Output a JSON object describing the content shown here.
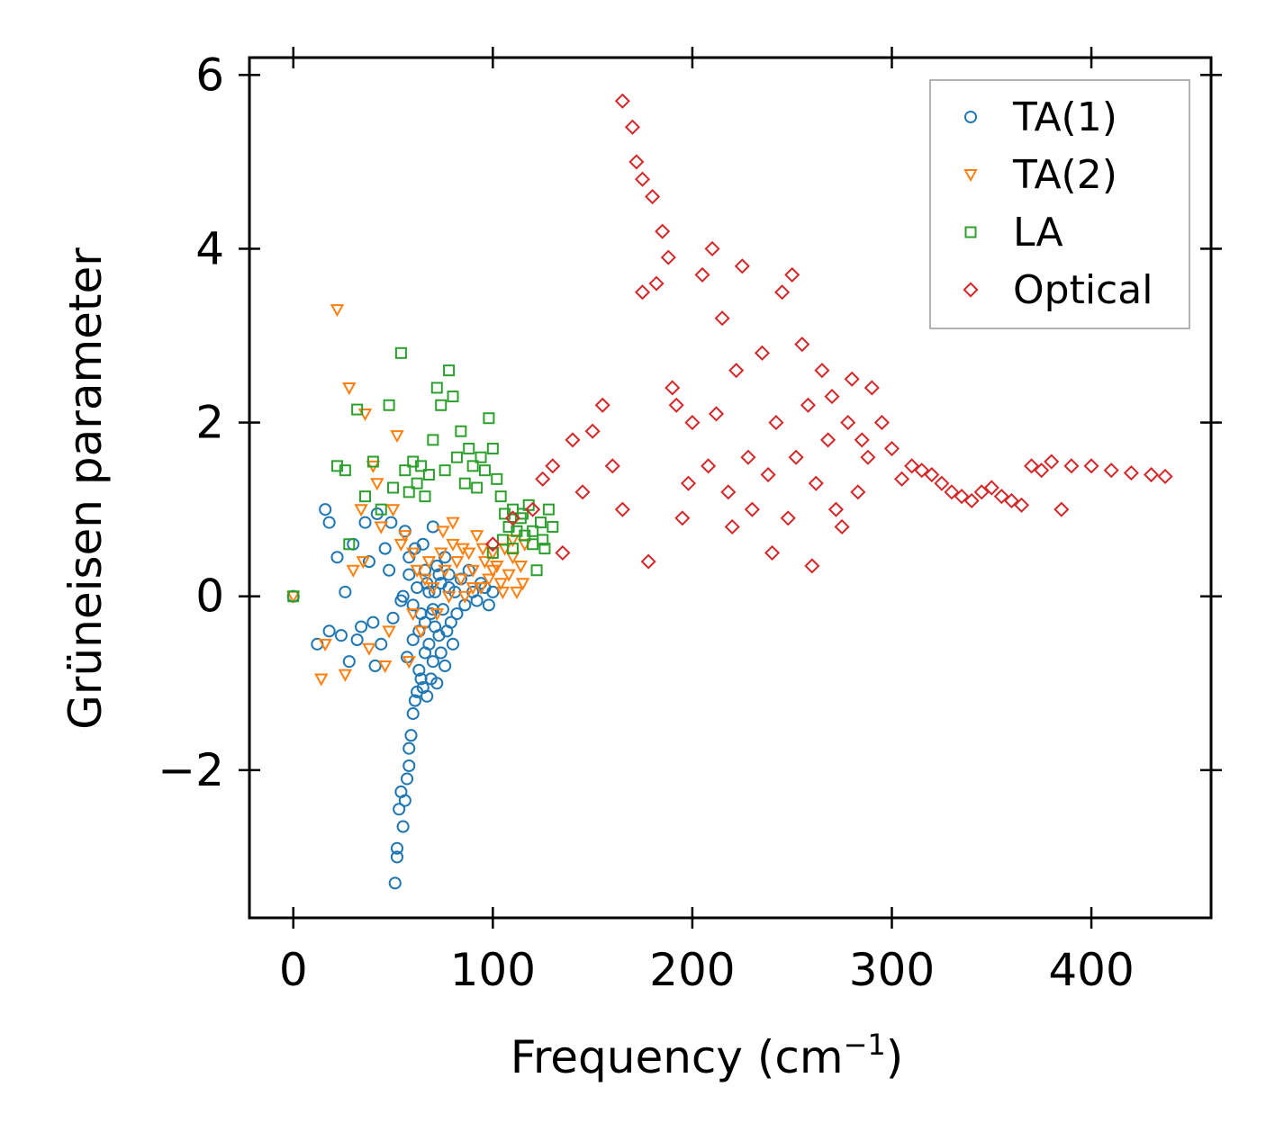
{
  "chart_data": {
    "type": "scatter",
    "title": "",
    "xlabel": "Frequency (cm",
    "xlabel_sup": "−1",
    "xlabel_close": ")",
    "ylabel": "Grüneisen parameter",
    "xlim": [
      -22,
      460
    ],
    "ylim": [
      -3.7,
      6.2
    ],
    "x_ticks": [
      0,
      100,
      200,
      300,
      400
    ],
    "x_tick_labels": [
      "0",
      "100",
      "200",
      "300",
      "400"
    ],
    "y_ticks": [
      -2,
      0,
      2,
      4,
      6
    ],
    "y_tick_labels": [
      "−2",
      "0",
      "2",
      "4",
      "6"
    ],
    "grid": false,
    "legend_position": "top-right",
    "series": [
      {
        "name": "TA(1)",
        "marker": "circle",
        "color": "#1f77b4",
        "points": [
          [
            0,
            0
          ],
          [
            12,
            -0.55
          ],
          [
            18,
            -0.4
          ],
          [
            16,
            1.0
          ],
          [
            18,
            0.85
          ],
          [
            22,
            0.45
          ],
          [
            24,
            -0.45
          ],
          [
            26,
            0.05
          ],
          [
            28,
            -0.75
          ],
          [
            30,
            0.6
          ],
          [
            32,
            -0.5
          ],
          [
            34,
            -0.35
          ],
          [
            36,
            0.85
          ],
          [
            38,
            0.4
          ],
          [
            40,
            -0.3
          ],
          [
            41,
            -0.8
          ],
          [
            42,
            0.95
          ],
          [
            44,
            -0.55
          ],
          [
            46,
            0.55
          ],
          [
            48,
            0.3
          ],
          [
            49,
            0.85
          ],
          [
            50,
            -0.25
          ],
          [
            51,
            -3.3
          ],
          [
            52,
            -3.0
          ],
          [
            52,
            -2.9
          ],
          [
            53,
            -2.45
          ],
          [
            54,
            -2.25
          ],
          [
            55,
            -2.65
          ],
          [
            56,
            -2.35
          ],
          [
            57,
            -2.1
          ],
          [
            58,
            -1.95
          ],
          [
            58,
            -1.75
          ],
          [
            59,
            -1.6
          ],
          [
            60,
            -1.35
          ],
          [
            61,
            -1.2
          ],
          [
            62,
            -1.1
          ],
          [
            63,
            -0.85
          ],
          [
            64,
            -0.95
          ],
          [
            65,
            -1.05
          ],
          [
            66,
            -0.65
          ],
          [
            67,
            -1.15
          ],
          [
            68,
            -0.55
          ],
          [
            69,
            -0.95
          ],
          [
            70,
            -0.75
          ],
          [
            71,
            -0.35
          ],
          [
            72,
            -1.0
          ],
          [
            73,
            -0.45
          ],
          [
            74,
            -0.65
          ],
          [
            75,
            -0.15
          ],
          [
            76,
            -0.8
          ],
          [
            77,
            -0.4
          ],
          [
            78,
            0.1
          ],
          [
            79,
            -0.3
          ],
          [
            80,
            -0.55
          ],
          [
            81,
            0.05
          ],
          [
            82,
            -0.2
          ],
          [
            84,
            0.2
          ],
          [
            86,
            -0.1
          ],
          [
            88,
            0.3
          ],
          [
            90,
            0.05
          ],
          [
            92,
            -0.05
          ],
          [
            94,
            0.15
          ],
          [
            96,
            0.1
          ],
          [
            98,
            -0.1
          ],
          [
            100,
            0.05
          ],
          [
            55,
            0.0
          ],
          [
            58,
            0.25
          ],
          [
            60,
            -0.1
          ],
          [
            62,
            0.1
          ],
          [
            64,
            -0.2
          ],
          [
            66,
            0.3
          ],
          [
            68,
            0.05
          ],
          [
            70,
            -0.15
          ],
          [
            72,
            0.35
          ],
          [
            74,
            0.15
          ],
          [
            76,
            0.45
          ],
          [
            78,
            0.25
          ],
          [
            60,
            -0.5
          ],
          [
            63,
            -0.4
          ],
          [
            66,
            -0.3
          ],
          [
            69,
            -0.2
          ],
          [
            65,
            0.6
          ],
          [
            70,
            0.8
          ],
          [
            58,
            0.45
          ],
          [
            56,
            0.75
          ],
          [
            54,
            -0.05
          ],
          [
            57,
            -0.7
          ],
          [
            61,
            0.55
          ],
          [
            67,
            0.15
          ],
          [
            71,
            0.05
          ],
          [
            73,
            0.25
          ]
        ]
      },
      {
        "name": "TA(2)",
        "marker": "triangle-down",
        "color": "#ff7f0e",
        "points": [
          [
            0,
            0
          ],
          [
            14,
            -0.95
          ],
          [
            16,
            -0.55
          ],
          [
            22,
            3.3
          ],
          [
            26,
            -0.9
          ],
          [
            28,
            2.4
          ],
          [
            30,
            0.3
          ],
          [
            34,
            1.0
          ],
          [
            36,
            2.1
          ],
          [
            38,
            -0.6
          ],
          [
            40,
            1.5
          ],
          [
            42,
            1.3
          ],
          [
            44,
            0.8
          ],
          [
            46,
            -0.8
          ],
          [
            48,
            -0.4
          ],
          [
            50,
            1.0
          ],
          [
            52,
            1.85
          ],
          [
            54,
            0.6
          ],
          [
            56,
            0.7
          ],
          [
            58,
            -0.75
          ],
          [
            60,
            0.5
          ],
          [
            62,
            0.3
          ],
          [
            64,
            -0.4
          ],
          [
            66,
            0.2
          ],
          [
            68,
            0.4
          ],
          [
            70,
            0.1
          ],
          [
            72,
            -0.2
          ],
          [
            74,
            0.5
          ],
          [
            76,
            0.3
          ],
          [
            78,
            0.0
          ],
          [
            80,
            0.6
          ],
          [
            82,
            0.4
          ],
          [
            84,
            0.2
          ],
          [
            86,
            0.0
          ],
          [
            88,
            0.5
          ],
          [
            90,
            0.3
          ],
          [
            92,
            0.7
          ],
          [
            94,
            0.1
          ],
          [
            96,
            0.4
          ],
          [
            98,
            0.2
          ],
          [
            100,
            0.5
          ],
          [
            102,
            0.35
          ],
          [
            104,
            0.15
          ],
          [
            106,
            0.55
          ],
          [
            108,
            0.25
          ],
          [
            110,
            0.45
          ],
          [
            112,
            0.05
          ],
          [
            114,
            0.35
          ],
          [
            116,
            0.6
          ],
          [
            75,
            0.75
          ],
          [
            80,
            0.85
          ],
          [
            85,
            0.55
          ],
          [
            90,
            0.1
          ],
          [
            95,
            0.55
          ],
          [
            100,
            0.3
          ],
          [
            105,
            0.05
          ],
          [
            110,
            0.65
          ],
          [
            115,
            0.15
          ],
          [
            35,
            0.4
          ],
          [
            60,
            -0.2
          ]
        ]
      },
      {
        "name": "LA",
        "marker": "square",
        "color": "#2ca02c",
        "points": [
          [
            0,
            0
          ],
          [
            22,
            1.5
          ],
          [
            26,
            1.45
          ],
          [
            28,
            0.6
          ],
          [
            32,
            2.15
          ],
          [
            36,
            1.15
          ],
          [
            40,
            1.55
          ],
          [
            44,
            1.0
          ],
          [
            48,
            2.2
          ],
          [
            50,
            1.25
          ],
          [
            54,
            2.8
          ],
          [
            56,
            1.45
          ],
          [
            58,
            1.2
          ],
          [
            60,
            1.55
          ],
          [
            62,
            1.3
          ],
          [
            64,
            1.5
          ],
          [
            66,
            1.15
          ],
          [
            68,
            1.4
          ],
          [
            70,
            1.8
          ],
          [
            72,
            2.4
          ],
          [
            74,
            2.2
          ],
          [
            76,
            1.45
          ],
          [
            78,
            2.6
          ],
          [
            80,
            2.3
          ],
          [
            82,
            1.6
          ],
          [
            84,
            1.9
          ],
          [
            86,
            1.3
          ],
          [
            88,
            1.7
          ],
          [
            90,
            1.5
          ],
          [
            92,
            1.25
          ],
          [
            94,
            1.6
          ],
          [
            96,
            1.45
          ],
          [
            98,
            2.05
          ],
          [
            100,
            1.7
          ],
          [
            102,
            1.35
          ],
          [
            104,
            1.15
          ],
          [
            106,
            0.95
          ],
          [
            108,
            0.8
          ],
          [
            110,
            1.0
          ],
          [
            112,
            0.75
          ],
          [
            114,
            0.9
          ],
          [
            116,
            0.7
          ],
          [
            118,
            1.05
          ],
          [
            120,
            0.6
          ],
          [
            122,
            0.3
          ],
          [
            124,
            0.85
          ],
          [
            126,
            0.55
          ],
          [
            128,
            1.0
          ],
          [
            130,
            0.8
          ],
          [
            100,
            0.5
          ],
          [
            105,
            0.65
          ],
          [
            110,
            0.55
          ],
          [
            115,
            0.95
          ],
          [
            120,
            0.75
          ],
          [
            125,
            0.65
          ]
        ]
      },
      {
        "name": "Optical",
        "marker": "diamond",
        "color": "#d62728",
        "points": [
          [
            100,
            0.6
          ],
          [
            110,
            0.9
          ],
          [
            120,
            1.0
          ],
          [
            125,
            1.35
          ],
          [
            130,
            1.5
          ],
          [
            135,
            0.5
          ],
          [
            140,
            1.8
          ],
          [
            145,
            1.2
          ],
          [
            150,
            1.9
          ],
          [
            155,
            2.2
          ],
          [
            160,
            1.5
          ],
          [
            165,
            5.7
          ],
          [
            165,
            1.0
          ],
          [
            170,
            5.4
          ],
          [
            172,
            5.0
          ],
          [
            175,
            4.8
          ],
          [
            178,
            0.4
          ],
          [
            180,
            4.6
          ],
          [
            185,
            4.2
          ],
          [
            188,
            3.9
          ],
          [
            190,
            2.4
          ],
          [
            195,
            0.9
          ],
          [
            200,
            2.0
          ],
          [
            205,
            3.7
          ],
          [
            210,
            4.0
          ],
          [
            215,
            3.2
          ],
          [
            220,
            0.8
          ],
          [
            225,
            3.8
          ],
          [
            230,
            1.0
          ],
          [
            235,
            2.8
          ],
          [
            240,
            0.5
          ],
          [
            245,
            3.5
          ],
          [
            250,
            3.7
          ],
          [
            255,
            2.9
          ],
          [
            260,
            0.35
          ],
          [
            265,
            2.6
          ],
          [
            270,
            2.3
          ],
          [
            275,
            0.8
          ],
          [
            280,
            2.5
          ],
          [
            285,
            1.8
          ],
          [
            290,
            2.4
          ],
          [
            300,
            1.7
          ],
          [
            310,
            1.5
          ],
          [
            320,
            1.4
          ],
          [
            330,
            1.2
          ],
          [
            340,
            1.1
          ],
          [
            350,
            1.25
          ],
          [
            360,
            1.1
          ],
          [
            370,
            1.5
          ],
          [
            380,
            1.55
          ],
          [
            390,
            1.5
          ],
          [
            400,
            1.5
          ],
          [
            410,
            1.45
          ],
          [
            420,
            1.42
          ],
          [
            430,
            1.4
          ],
          [
            437,
            1.38
          ],
          [
            175,
            3.5
          ],
          [
            182,
            3.6
          ],
          [
            192,
            2.2
          ],
          [
            198,
            1.3
          ],
          [
            208,
            1.5
          ],
          [
            212,
            2.1
          ],
          [
            218,
            1.2
          ],
          [
            222,
            2.6
          ],
          [
            228,
            1.6
          ],
          [
            238,
            1.4
          ],
          [
            242,
            2.0
          ],
          [
            248,
            0.9
          ],
          [
            252,
            1.6
          ],
          [
            258,
            2.2
          ],
          [
            262,
            1.3
          ],
          [
            268,
            1.8
          ],
          [
            272,
            1.0
          ],
          [
            278,
            2.0
          ],
          [
            283,
            1.2
          ],
          [
            288,
            1.6
          ],
          [
            295,
            2.0
          ],
          [
            305,
            1.35
          ],
          [
            315,
            1.45
          ],
          [
            325,
            1.3
          ],
          [
            335,
            1.15
          ],
          [
            345,
            1.2
          ],
          [
            355,
            1.15
          ],
          [
            365,
            1.05
          ],
          [
            375,
            1.45
          ],
          [
            385,
            1.0
          ]
        ]
      }
    ]
  }
}
